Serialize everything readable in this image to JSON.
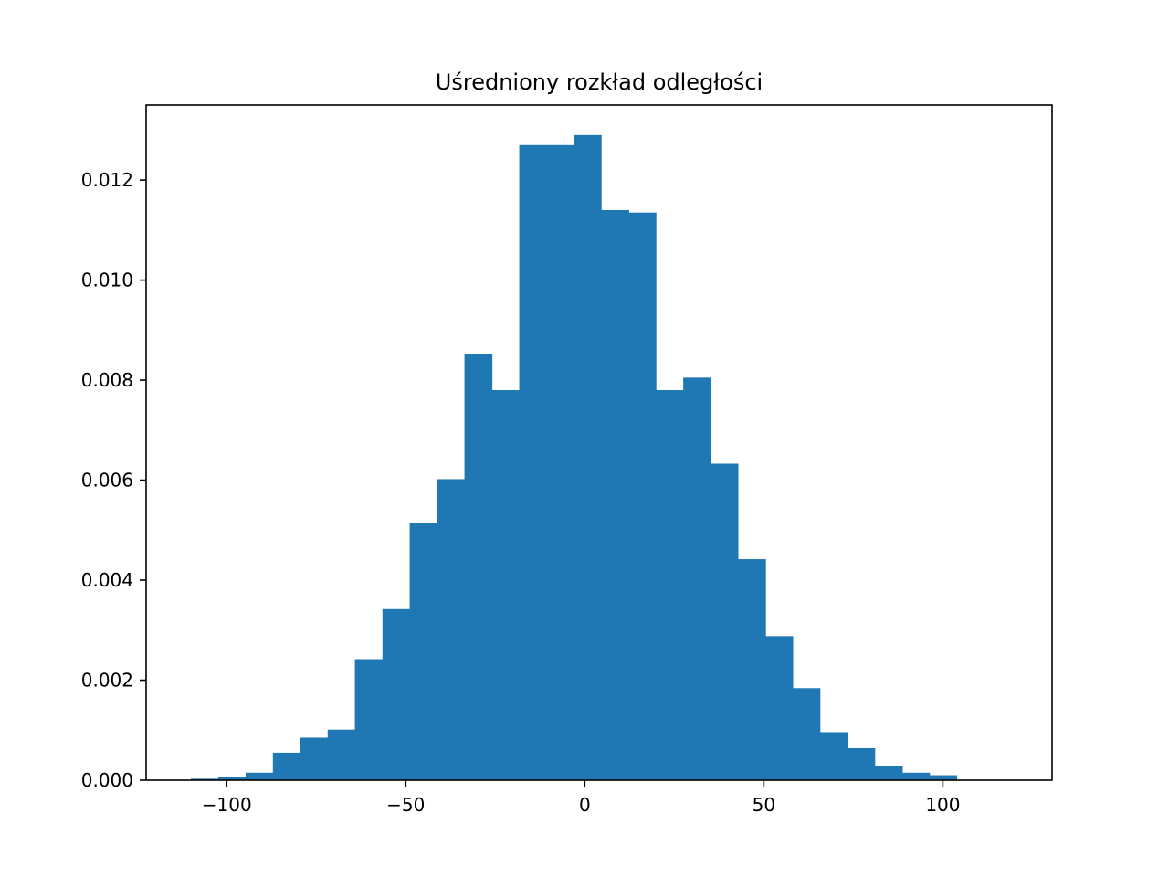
{
  "chart_data": {
    "type": "bar",
    "title": "Uśredniony rozkład odległości",
    "xlabel": "",
    "ylabel": "",
    "bar_color": "#1f77b4",
    "grid": false,
    "xlim": [
      -122.5,
      130.5
    ],
    "ylim": [
      0,
      0.0135
    ],
    "bin_edges": [
      -110.0,
      -102.4,
      -94.7,
      -87.1,
      -79.4,
      -71.8,
      -64.2,
      -56.5,
      -48.9,
      -41.2,
      -33.6,
      -25.9,
      -18.3,
      -10.7,
      -3.0,
      4.6,
      12.3,
      19.9,
      27.5,
      35.2,
      42.8,
      50.5,
      58.1,
      65.7,
      73.4,
      81.0,
      88.7,
      96.3,
      103.9,
      111.6,
      119.2
    ],
    "values": [
      3e-05,
      6e-05,
      0.00015,
      0.00055,
      0.00085,
      0.00101,
      0.00242,
      0.00342,
      0.00515,
      0.00602,
      0.00852,
      0.0078,
      0.0127,
      0.0127,
      0.0129,
      0.0114,
      0.01135,
      0.0078,
      0.00805,
      0.00633,
      0.00442,
      0.00288,
      0.00184,
      0.00096,
      0.00064,
      0.00028,
      0.00015,
      0.0001,
      0.0,
      0.0
    ],
    "xticks": [
      -100,
      -50,
      0,
      50,
      100
    ],
    "xtick_labels": [
      "−100",
      "−50",
      "0",
      "50",
      "100"
    ],
    "yticks": [
      0.0,
      0.002,
      0.004,
      0.006,
      0.008,
      0.01,
      0.012
    ],
    "ytick_labels": [
      "0.000",
      "0.002",
      "0.004",
      "0.006",
      "0.008",
      "0.010",
      "0.012"
    ]
  }
}
